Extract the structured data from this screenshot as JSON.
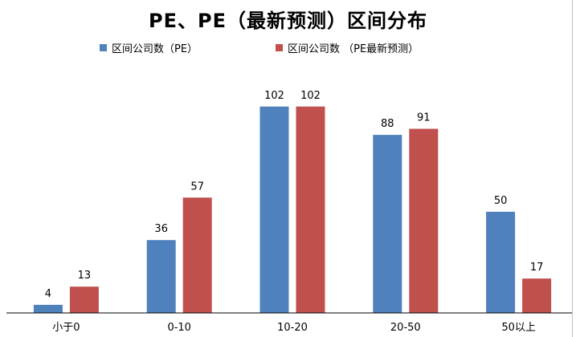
{
  "chart_data": {
    "type": "bar",
    "title": "PE、PE（最新预测）区间分布",
    "categories": [
      "小于0",
      "0-10",
      "10-20",
      "20-50",
      "50以上"
    ],
    "series": [
      {
        "name": "区间公司数（PE）",
        "color": "#4F81BD",
        "values": [
          4,
          36,
          102,
          88,
          50
        ]
      },
      {
        "name": "区间公司数 （PE最新预测）",
        "color": "#C0504D",
        "values": [
          13,
          57,
          102,
          91,
          17
        ]
      }
    ],
    "ylim": [
      0,
      115
    ],
    "xlabel": "",
    "ylabel": "",
    "grid": false,
    "legend": "top"
  }
}
